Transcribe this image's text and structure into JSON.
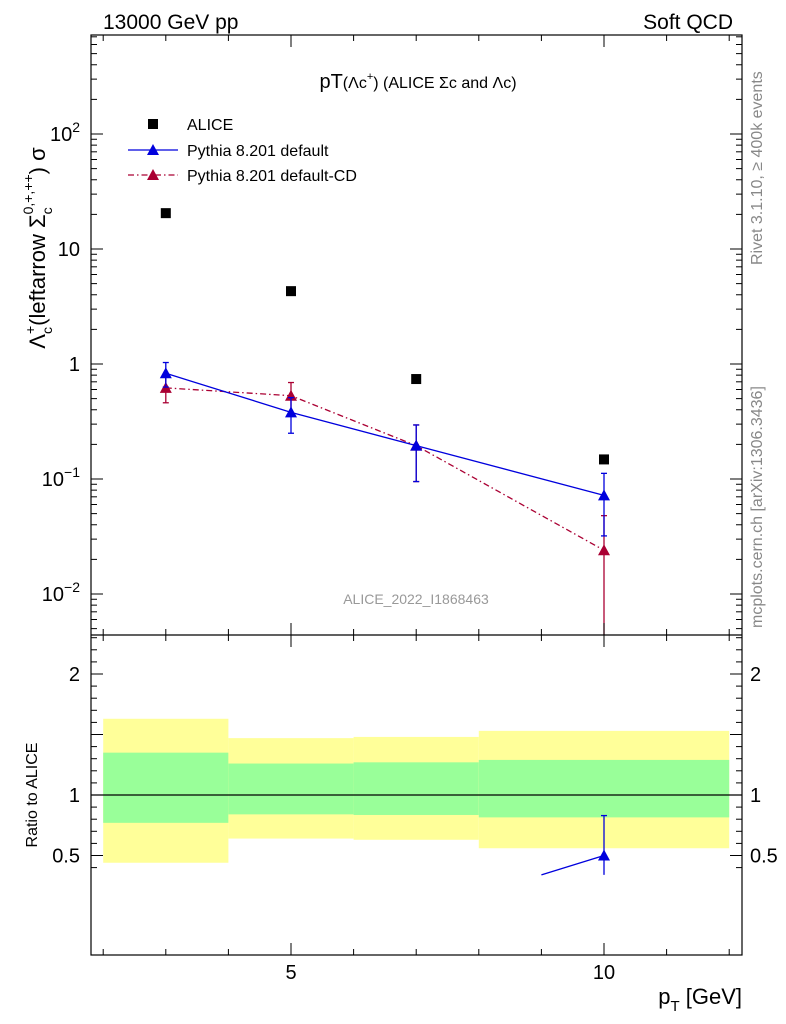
{
  "header": {
    "left": "13000 GeV pp",
    "right": "Soft QCD"
  },
  "side_labels": {
    "rivet": "Rivet 3.1.10, ≥ 400k events",
    "mcplots": "mcplots.cern.ch [arXiv:1306.3436]"
  },
  "watermark": "ALICE_2022_I1868463",
  "colors": {
    "data": "#000000",
    "pythia_default": "#0000dd",
    "pythia_cd": "#aa0033",
    "band_inner": "#99ff99",
    "band_outer": "#ffff99"
  },
  "chart_data": [
    {
      "type": "scatter",
      "panel": "main",
      "title": "pT(Λc⁺) (ALICE Σc and Λc)",
      "ylabel": "Λc⁺(leftarrow Σc⁰,⁺,⁺⁺) σ",
      "yscale": "log",
      "ylim": [
        0.005,
        1000
      ],
      "xlim": [
        2.0,
        12.2
      ],
      "y_ticks": [
        "10⁻²",
        "10⁻¹",
        "1",
        "10",
        "10²"
      ],
      "legend_position": "top-left",
      "series": [
        {
          "name": "ALICE",
          "marker": "square",
          "x": [
            3,
            5,
            7,
            10
          ],
          "y": [
            20.5,
            4.3,
            0.74,
            0.148
          ]
        },
        {
          "name": "Pythia 8.201 default",
          "marker": "triangle",
          "line": "solid",
          "x": [
            3,
            5,
            7,
            10
          ],
          "y": [
            0.83,
            0.38,
            0.195,
            0.072
          ],
          "yerr": [
            0.2,
            0.13,
            0.1,
            0.04
          ]
        },
        {
          "name": "Pythia 8.201 default-CD",
          "marker": "triangle",
          "line": "dashdot",
          "x": [
            3,
            5,
            7,
            10
          ],
          "y": [
            0.62,
            0.53,
            0.195,
            0.024
          ],
          "yerr": [
            0.16,
            0.16,
            0.1,
            0.024
          ]
        }
      ]
    },
    {
      "type": "area",
      "panel": "ratio",
      "ylabel": "Ratio to ALICE",
      "xlabel": "p_T [GeV]",
      "ylim": [
        0.34,
        2.35
      ],
      "x_ticks": [
        "5",
        "10"
      ],
      "y_ticks": [
        "0.5",
        "1",
        "2"
      ],
      "bands": [
        {
          "xlo": 2,
          "xhi": 4,
          "inner": [
            0.77,
            1.35
          ],
          "outer": [
            0.44,
            1.63
          ]
        },
        {
          "xlo": 4,
          "xhi": 6,
          "inner": [
            0.84,
            1.26
          ],
          "outer": [
            0.64,
            1.47
          ]
        },
        {
          "xlo": 6,
          "xhi": 8,
          "inner": [
            0.835,
            1.27
          ],
          "outer": [
            0.63,
            1.48
          ]
        },
        {
          "xlo": 8,
          "xhi": 12,
          "inner": [
            0.815,
            1.29
          ],
          "outer": [
            0.56,
            1.53
          ]
        }
      ],
      "series": [
        {
          "name": "Pythia 8.201 default",
          "x": [
            9,
            10
          ],
          "y": [
            0.34,
            0.5
          ],
          "yerr_up": [
            0,
            0.33
          ],
          "yerr_down": [
            0,
            0.16
          ]
        }
      ]
    }
  ]
}
